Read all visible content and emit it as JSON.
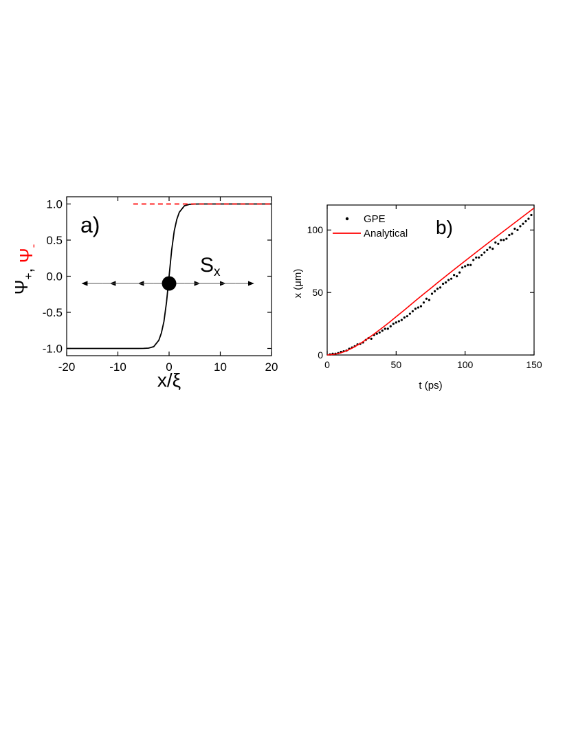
{
  "chart_data": [
    {
      "type": "line",
      "panel_label": "a)",
      "xlabel": "x/ξ",
      "ylabel_parts": [
        {
          "text": "Ψ",
          "sub": "+",
          "color": "#000000"
        },
        {
          "text": ", ",
          "sub": "",
          "color": "#000000"
        },
        {
          "text": "Ψ",
          "sub": "-",
          "color": "#ff0000"
        }
      ],
      "xlim": [
        -20,
        20
      ],
      "ylim": [
        -1.1,
        1.1
      ],
      "xticks": [
        -20,
        -10,
        0,
        10,
        20
      ],
      "xtick_labels": [
        "-20",
        "-10",
        "0",
        "10",
        "20"
      ],
      "yticks": [
        -1.0,
        -0.5,
        0.0,
        0.5,
        1.0
      ],
      "ytick_labels": [
        "-1.0",
        "-0.5",
        "0.0",
        "0.5",
        "1.0"
      ],
      "series": [
        {
          "style": "solid",
          "color": "#000000",
          "x": [
            -20,
            -10,
            -6,
            -5,
            -4,
            -3,
            -2,
            -1.5,
            -1,
            -0.5,
            0,
            0.5,
            1,
            1.5,
            2,
            3,
            4,
            5,
            6,
            10,
            20
          ],
          "y": [
            -1.0,
            -1.0,
            -0.9999,
            -0.9991,
            -0.9951,
            -0.9757,
            -0.8863,
            -0.7857,
            -0.627,
            -0.3574,
            0.0,
            0.3574,
            0.627,
            0.7857,
            0.8863,
            0.9757,
            0.9951,
            0.9991,
            0.9999,
            1.0,
            1.0
          ]
        },
        {
          "style": "dashed",
          "color": "#ff0000",
          "x": [
            -7,
            20
          ],
          "y": [
            1.0,
            1.0
          ]
        }
      ],
      "annotation": {
        "label": "S",
        "sub": "x",
        "dot_x": 0,
        "dot_y": -0.1,
        "arrows": [
          {
            "from": -13,
            "to": -17
          },
          {
            "from": -8,
            "to": -11.5
          },
          {
            "from": -3,
            "to": -6
          },
          {
            "from": 3,
            "to": 6
          },
          {
            "from": 8,
            "to": 11
          },
          {
            "from": 13,
            "to": 16.5
          }
        ]
      }
    },
    {
      "type": "scatter",
      "panel_label": "b)",
      "xlabel": "t (ps)",
      "ylabel": "x (μm)",
      "xlim": [
        0,
        150
      ],
      "ylim": [
        0,
        120
      ],
      "xticks": [
        0,
        50,
        100,
        150
      ],
      "xtick_labels": [
        "0",
        "50",
        "100",
        "150"
      ],
      "yticks": [
        0,
        50,
        100
      ],
      "ytick_labels": [
        "0",
        "50",
        "100"
      ],
      "legend": {
        "position": "top-left",
        "entries": [
          {
            "name": "GPE",
            "marker": "dot",
            "color": "#000000"
          },
          {
            "name": "Analytical",
            "marker": "line",
            "color": "#ff0000"
          }
        ]
      },
      "series": [
        {
          "name": "GPE",
          "marker": "dot",
          "color": "#000000",
          "x": [
            2,
            4,
            6,
            8,
            10,
            12,
            14,
            16,
            18,
            20,
            22,
            24,
            26,
            28,
            30,
            32,
            34,
            36,
            38,
            40,
            42,
            44,
            46,
            48,
            50,
            52,
            54,
            56,
            58,
            60,
            62,
            64,
            66,
            68,
            70,
            72,
            74,
            76,
            78,
            80,
            82,
            84,
            86,
            88,
            90,
            92,
            94,
            96,
            98,
            100,
            102,
            104,
            106,
            108,
            110,
            112,
            114,
            116,
            118,
            120,
            122,
            124,
            126,
            128,
            130,
            132,
            134,
            136,
            138,
            140,
            142,
            144,
            146,
            148
          ],
          "y": [
            0.5,
            1,
            1,
            1.5,
            2.5,
            3,
            3.5,
            5,
            6,
            7,
            8.5,
            9,
            10,
            12,
            13.5,
            13,
            16,
            17,
            18,
            19.5,
            21,
            21,
            23,
            25,
            26,
            27,
            28,
            30,
            31,
            33,
            35,
            37,
            38,
            39,
            42,
            45,
            44,
            49,
            51,
            53,
            54,
            57,
            58,
            60,
            61,
            64,
            63,
            66,
            70,
            71,
            72,
            72,
            76,
            78,
            78,
            80,
            82,
            84,
            86,
            85,
            90,
            89,
            92,
            92,
            93,
            96,
            97,
            101,
            100,
            103,
            105,
            107,
            109,
            112
          ]
        },
        {
          "name": "Analytical",
          "marker": "line",
          "color": "#ff0000",
          "x": [
            0,
            5,
            10,
            15,
            20,
            25,
            30,
            35,
            40,
            45,
            50,
            55,
            60,
            65,
            70,
            75,
            80,
            90,
            100,
            110,
            120,
            130,
            140,
            150
          ],
          "y": [
            0,
            0.5,
            1.7,
            3.8,
            6.6,
            9.9,
            13.6,
            17.6,
            21.8,
            26.1,
            30.6,
            35.1,
            39.7,
            44.3,
            48.8,
            53.3,
            57.8,
            66.6,
            75.3,
            83.9,
            92.4,
            100.8,
            109.2,
            117.6
          ]
        }
      ]
    }
  ]
}
